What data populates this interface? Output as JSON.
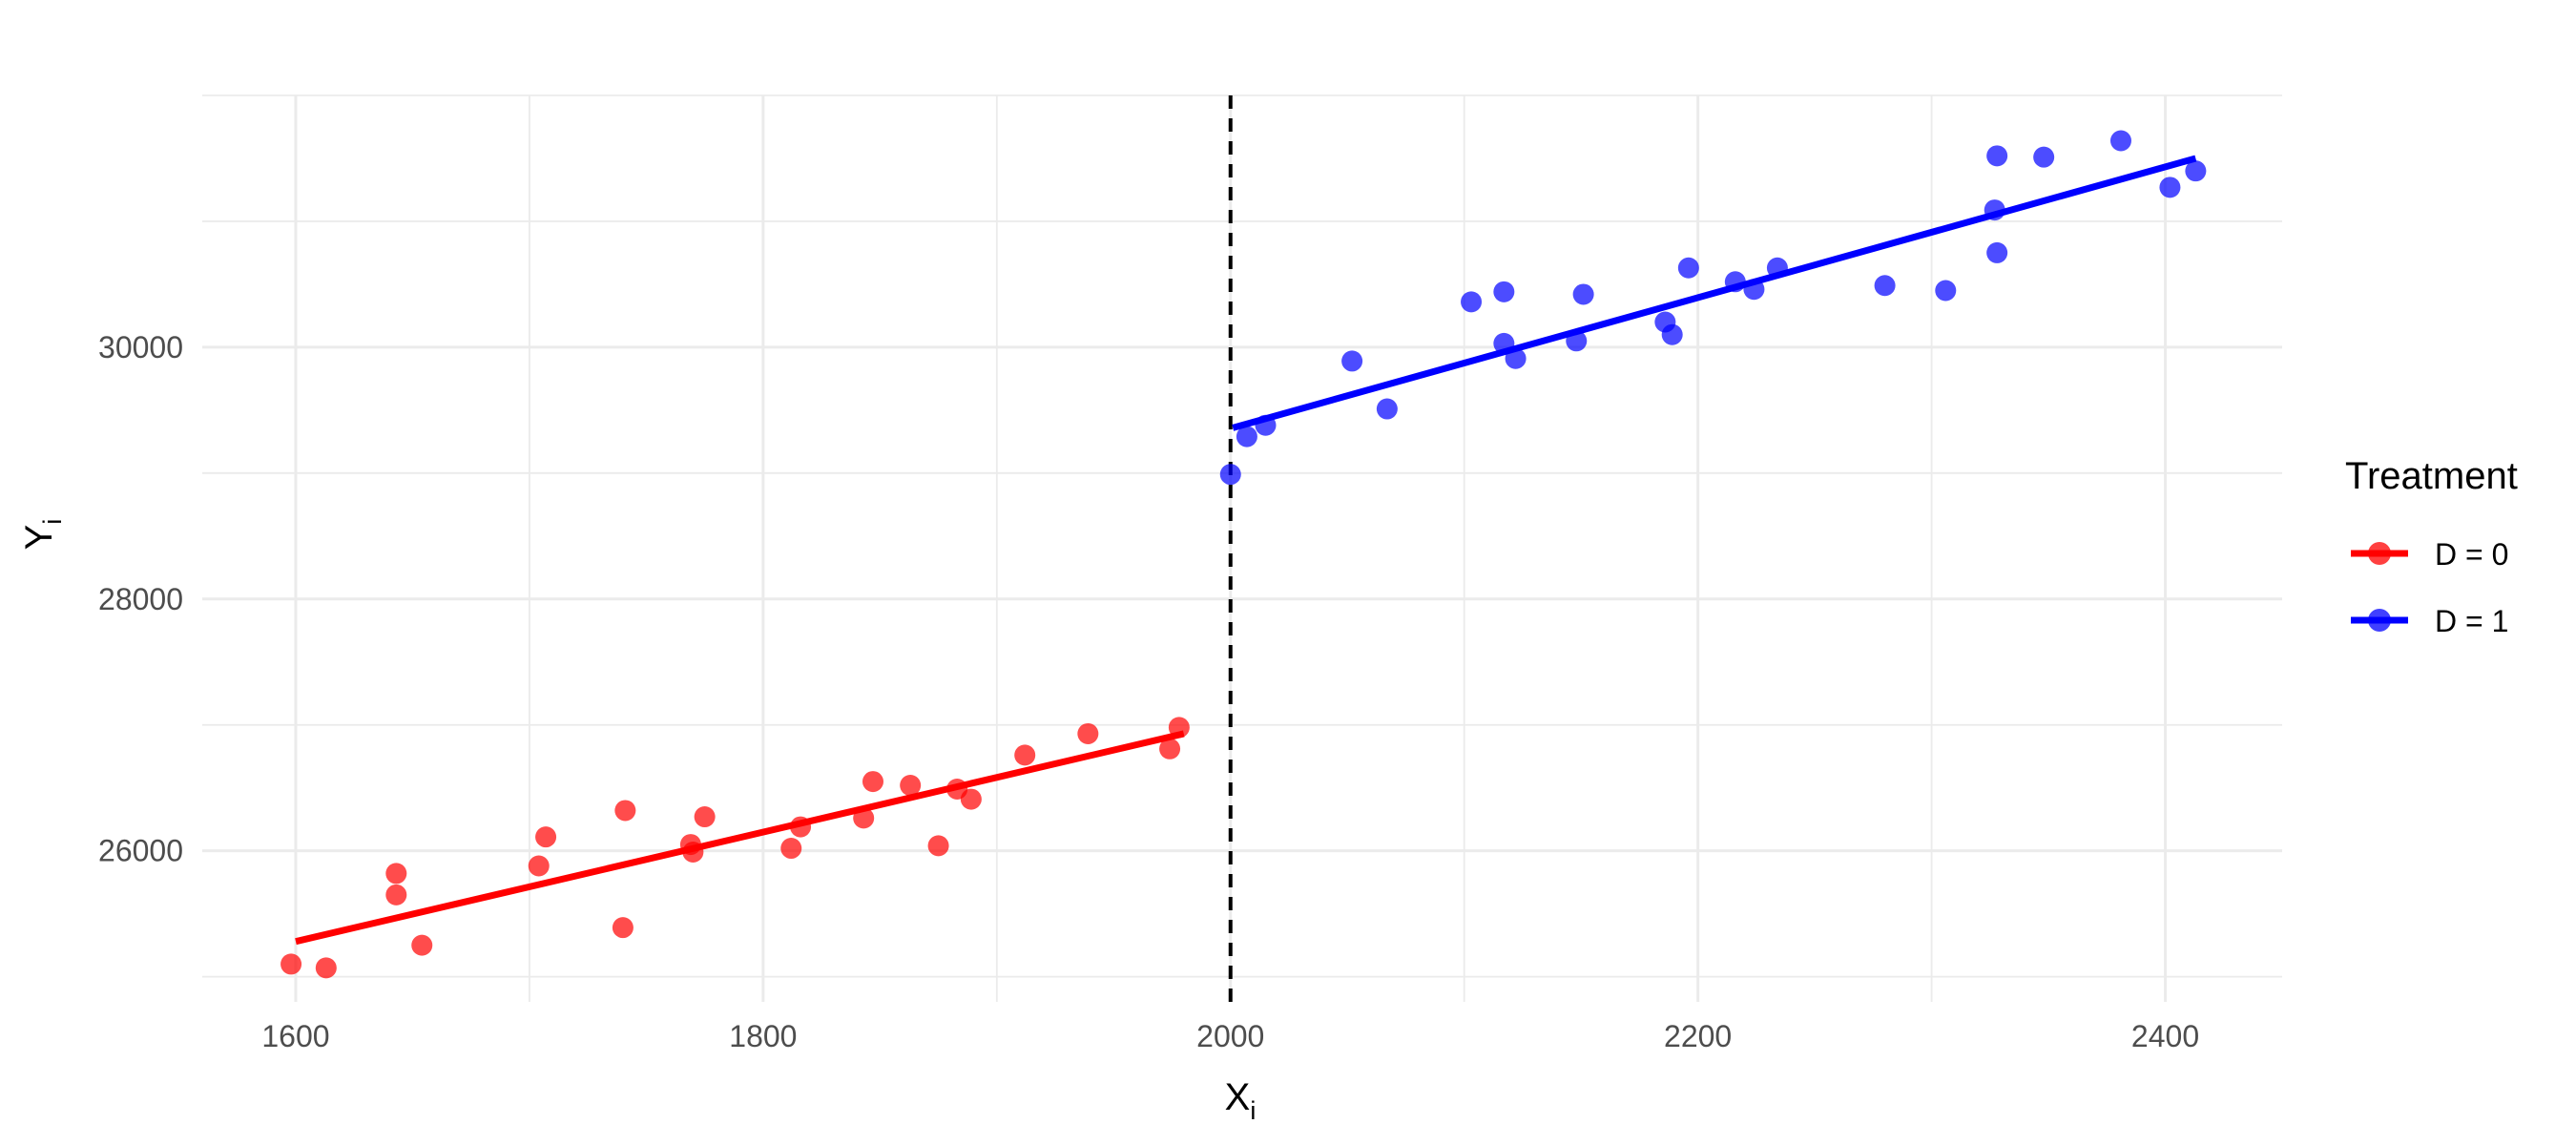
{
  "chart_data": {
    "type": "scatter",
    "xlabel": "X",
    "xlabel_sub": "i",
    "ylabel": "Y",
    "ylabel_sub": "i",
    "xlim": [
      1560,
      2450
    ],
    "ylim": [
      24800,
      32000
    ],
    "x_ticks": [
      1600,
      1800,
      2000,
      2200,
      2400
    ],
    "y_ticks": [
      26000,
      28000,
      30000
    ],
    "grid": true,
    "cutoff": 2000,
    "legend": {
      "title": "Treatment",
      "placement": "right"
    },
    "series": [
      {
        "name": "D = 0",
        "color": "#ff0000",
        "fit": {
          "x": [
            1600,
            1980
          ],
          "y": [
            25280,
            26930
          ]
        },
        "points": [
          [
            1598,
            25100
          ],
          [
            1613,
            25070
          ],
          [
            1643,
            25820
          ],
          [
            1643,
            25650
          ],
          [
            1654,
            25250
          ],
          [
            1704,
            25880
          ],
          [
            1707,
            26110
          ],
          [
            1740,
            25390
          ],
          [
            1741,
            26320
          ],
          [
            1769,
            26050
          ],
          [
            1770,
            25990
          ],
          [
            1775,
            26270
          ],
          [
            1812,
            26020
          ],
          [
            1816,
            26190
          ],
          [
            1843,
            26260
          ],
          [
            1847,
            26550
          ],
          [
            1863,
            26520
          ],
          [
            1875,
            26040
          ],
          [
            1883,
            26490
          ],
          [
            1889,
            26410
          ],
          [
            1912,
            26760
          ],
          [
            1939,
            26930
          ],
          [
            1974,
            26810
          ],
          [
            1978,
            26980
          ]
        ]
      },
      {
        "name": "D = 1",
        "color": "#0000ff",
        "fit": {
          "x": [
            2001,
            2413
          ],
          "y": [
            29360,
            31500
          ]
        },
        "points": [
          [
            2000,
            28990
          ],
          [
            2007,
            29290
          ],
          [
            2015,
            29380
          ],
          [
            2052,
            29890
          ],
          [
            2067,
            29510
          ],
          [
            2103,
            30360
          ],
          [
            2117,
            30440
          ],
          [
            2117,
            30030
          ],
          [
            2122,
            29910
          ],
          [
            2148,
            30050
          ],
          [
            2151,
            30420
          ],
          [
            2186,
            30200
          ],
          [
            2189,
            30100
          ],
          [
            2196,
            30630
          ],
          [
            2216,
            30520
          ],
          [
            2224,
            30460
          ],
          [
            2234,
            30630
          ],
          [
            2280,
            30490
          ],
          [
            2306,
            30450
          ],
          [
            2327,
            31090
          ],
          [
            2328,
            31520
          ],
          [
            2328,
            30750
          ],
          [
            2348,
            31510
          ],
          [
            2381,
            31640
          ],
          [
            2402,
            31270
          ],
          [
            2413,
            31400
          ]
        ]
      }
    ]
  }
}
